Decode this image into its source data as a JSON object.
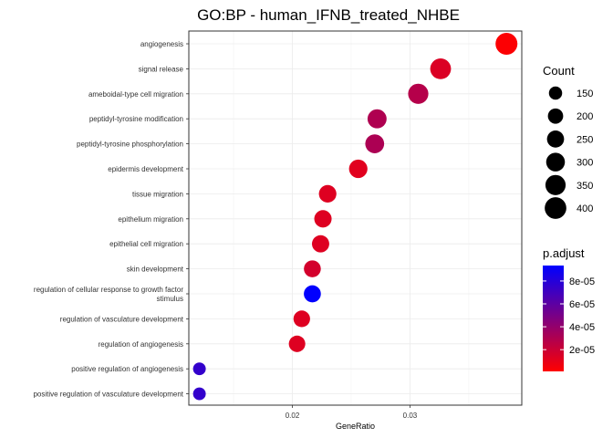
{
  "chart_data": {
    "type": "scatter",
    "title": "GO:BP - human_IFNB_treated_NHBE",
    "xlabel": "GeneRatio",
    "ylabel": "",
    "x_ticks": [
      {
        "value": 0.02,
        "label": "0.02"
      },
      {
        "value": 0.03,
        "label": "0.03"
      }
    ],
    "xlim": [
      0.0112,
      0.0395
    ],
    "grid": true,
    "points": [
      {
        "term": "angiogenesis",
        "gene_ratio": 0.0382,
        "count": 410,
        "p_adjust": 2e-06
      },
      {
        "term": "signal release",
        "gene_ratio": 0.0326,
        "count": 370,
        "p_adjust": 1.4e-05
      },
      {
        "term": "ameboidal-type cell migration",
        "gene_ratio": 0.0307,
        "count": 350,
        "p_adjust": 2.8e-05
      },
      {
        "term": "peptidyl-tyrosine modification",
        "gene_ratio": 0.0272,
        "count": 310,
        "p_adjust": 3e-05
      },
      {
        "term": "peptidyl-tyrosine phosphorylation",
        "gene_ratio": 0.027,
        "count": 305,
        "p_adjust": 3.1e-05
      },
      {
        "term": "epidermis development",
        "gene_ratio": 0.0256,
        "count": 290,
        "p_adjust": 1.2e-05
      },
      {
        "term": "tissue migration",
        "gene_ratio": 0.023,
        "count": 262,
        "p_adjust": 1.3e-05
      },
      {
        "term": "epithelium migration",
        "gene_ratio": 0.0226,
        "count": 258,
        "p_adjust": 1.3e-05
      },
      {
        "term": "epithelial cell migration",
        "gene_ratio": 0.0224,
        "count": 255,
        "p_adjust": 1.3e-05
      },
      {
        "term": "skin development",
        "gene_ratio": 0.0217,
        "count": 245,
        "p_adjust": 1.7e-05
      },
      {
        "term": "regulation of cellular response to growth factor stimulus",
        "label_lines": [
          "regulation of cellular response to growth factor",
          "stimulus"
        ],
        "gene_ratio": 0.0217,
        "count": 248,
        "p_adjust": 9.3e-05
      },
      {
        "term": "regulation of vasculature development",
        "gene_ratio": 0.0208,
        "count": 236,
        "p_adjust": 1.3e-05
      },
      {
        "term": "regulation of angiogenesis",
        "gene_ratio": 0.0204,
        "count": 232,
        "p_adjust": 1.3e-05
      },
      {
        "term": "positive regulation of angiogenesis",
        "gene_ratio": 0.0121,
        "count": 138,
        "p_adjust": 7.5e-05
      },
      {
        "term": "positive regulation of vasculature development",
        "gene_ratio": 0.0121,
        "count": 138,
        "p_adjust": 7.5e-05
      }
    ],
    "legend_size": {
      "title": "Count",
      "entries": [
        {
          "value": 150,
          "label": "150"
        },
        {
          "value": 200,
          "label": "200"
        },
        {
          "value": 250,
          "label": "250"
        },
        {
          "value": 300,
          "label": "300"
        },
        {
          "value": 350,
          "label": "350"
        },
        {
          "value": 400,
          "label": "400"
        }
      ]
    },
    "legend_color": {
      "title": "p.adjust",
      "range": [
        1e-06,
        9.35e-05
      ],
      "ticks": [
        {
          "value": 8e-05,
          "label": "8e-05"
        },
        {
          "value": 6e-05,
          "label": "6e-05"
        },
        {
          "value": 4e-05,
          "label": "4e-05"
        },
        {
          "value": 2e-05,
          "label": "2e-05"
        }
      ],
      "low_color": "#ff0000",
      "high_color": "#0000ff"
    },
    "legend_placement": "right"
  }
}
